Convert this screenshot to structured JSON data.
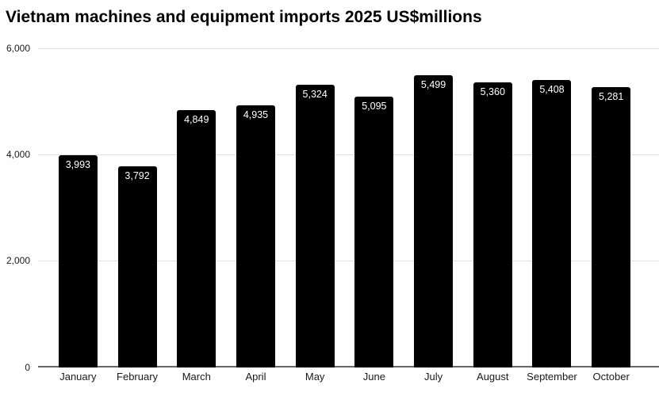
{
  "chart_data": {
    "type": "bar",
    "title": "Vietnam machines and equipment imports 2025 US$millions",
    "categories": [
      "January",
      "February",
      "March",
      "April",
      "May",
      "June",
      "July",
      "August",
      "September",
      "October"
    ],
    "values": [
      3993,
      3792,
      4849,
      4935,
      5324,
      5095,
      5499,
      5360,
      5408,
      5281
    ],
    "value_labels": [
      "3,993",
      "3,792",
      "4,849",
      "4,935",
      "5,324",
      "5,095",
      "5,499",
      "5,360",
      "5,408",
      "5,281"
    ],
    "xlabel": "",
    "ylabel": "",
    "ylim": [
      0,
      6000
    ],
    "yticks": [
      0,
      2000,
      4000,
      6000
    ],
    "ytick_labels": [
      "0",
      "2,000",
      "4,000",
      "6,000"
    ],
    "grid": true,
    "legend": false,
    "colors": {
      "bar": "#000000",
      "value_label": "#ffffff",
      "gridline": "#e0e0e0",
      "axis_line": "#666666",
      "tick_label": "#1a1a1a",
      "title": "#000000",
      "background": "#ffffff"
    }
  }
}
